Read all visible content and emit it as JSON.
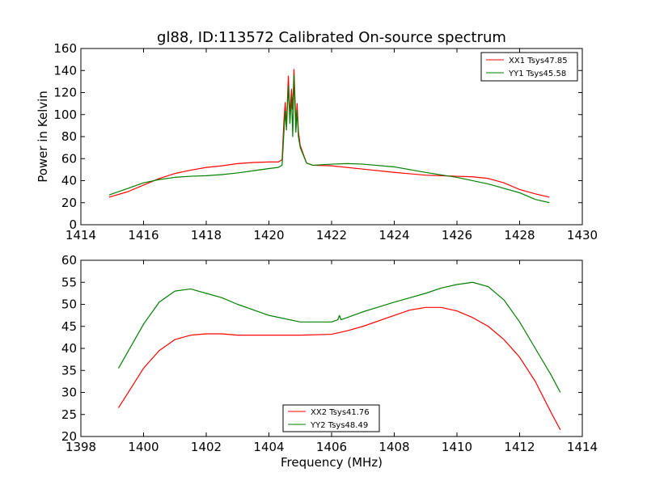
{
  "chart_data": [
    {
      "type": "line",
      "title": "gl88, ID:113572 Calibrated On-source spectrum",
      "xlabel": "",
      "ylabel": "Power in Kelvin",
      "xlim": [
        1414,
        1430
      ],
      "ylim": [
        0,
        160
      ],
      "xticks": [
        1414,
        1416,
        1418,
        1420,
        1422,
        1424,
        1426,
        1428,
        1430
      ],
      "yticks": [
        0,
        20,
        40,
        60,
        80,
        100,
        120,
        140,
        160
      ],
      "grid": false,
      "legend_position": "top-right",
      "series": [
        {
          "name": "XX1 Tsys47.85",
          "color": "#ff0000",
          "points": [
            [
              1414.9,
              25
            ],
            [
              1415.5,
              30
            ],
            [
              1416,
              36
            ],
            [
              1416.5,
              42
            ],
            [
              1417,
              46.5
            ],
            [
              1417.5,
              49.5
            ],
            [
              1418,
              52
            ],
            [
              1418.5,
              53.5
            ],
            [
              1419,
              55.5
            ],
            [
              1419.5,
              56.5
            ],
            [
              1420,
              57
            ],
            [
              1420.3,
              57
            ],
            [
              1420.42,
              59
            ],
            [
              1420.48,
              95
            ],
            [
              1420.52,
              111
            ],
            [
              1420.56,
              90
            ],
            [
              1420.62,
              135
            ],
            [
              1420.67,
              100
            ],
            [
              1420.72,
              123
            ],
            [
              1420.76,
              105
            ],
            [
              1420.8,
              141
            ],
            [
              1420.86,
              92
            ],
            [
              1420.9,
              110
            ],
            [
              1420.94,
              85
            ],
            [
              1421,
              72
            ],
            [
              1421.2,
              56
            ],
            [
              1421.4,
              54
            ],
            [
              1422,
              53.5
            ],
            [
              1423,
              50.5
            ],
            [
              1424,
              47.5
            ],
            [
              1425,
              45
            ],
            [
              1425.5,
              44.5
            ],
            [
              1426,
              44
            ],
            [
              1426.5,
              43.5
            ],
            [
              1427,
              42
            ],
            [
              1427.5,
              38
            ],
            [
              1428,
              32
            ],
            [
              1428.5,
              28
            ],
            [
              1428.95,
              25
            ]
          ]
        },
        {
          "name": "YY1 Tsys45.58",
          "color": "#008000",
          "points": [
            [
              1414.9,
              27
            ],
            [
              1415.5,
              33
            ],
            [
              1416,
              38
            ],
            [
              1416.5,
              41
            ],
            [
              1417,
              43
            ],
            [
              1417.5,
              44
            ],
            [
              1418,
              44.5
            ],
            [
              1418.5,
              45.5
            ],
            [
              1419,
              47
            ],
            [
              1419.5,
              49
            ],
            [
              1420,
              51
            ],
            [
              1420.3,
              52
            ],
            [
              1420.42,
              54
            ],
            [
              1420.48,
              84
            ],
            [
              1420.52,
              103
            ],
            [
              1420.56,
              86
            ],
            [
              1420.62,
              126
            ],
            [
              1420.67,
              92
            ],
            [
              1420.72,
              117
            ],
            [
              1420.76,
              80
            ],
            [
              1420.8,
              136
            ],
            [
              1420.86,
              84
            ],
            [
              1420.9,
              104
            ],
            [
              1420.94,
              80
            ],
            [
              1421,
              70
            ],
            [
              1421.2,
              56
            ],
            [
              1421.4,
              54
            ],
            [
              1422,
              55
            ],
            [
              1422.5,
              55.5
            ],
            [
              1423,
              55
            ],
            [
              1424,
              52.5
            ],
            [
              1425,
              47.5
            ],
            [
              1426,
              43
            ],
            [
              1427,
              37
            ],
            [
              1428,
              29
            ],
            [
              1428.5,
              23
            ],
            [
              1428.95,
              20
            ]
          ]
        }
      ]
    },
    {
      "type": "line",
      "title": "",
      "xlabel": "Frequency (MHz)",
      "ylabel": "",
      "xlim": [
        1398,
        1414
      ],
      "ylim": [
        20,
        60
      ],
      "xticks": [
        1398,
        1400,
        1402,
        1404,
        1406,
        1408,
        1410,
        1412,
        1414
      ],
      "yticks": [
        20,
        25,
        30,
        35,
        40,
        45,
        50,
        55,
        60
      ],
      "grid": false,
      "legend_position": "bottom-center",
      "series": [
        {
          "name": "XX2 Tsys41.76",
          "color": "#ff0000",
          "points": [
            [
              1399.2,
              26.5
            ],
            [
              1399.6,
              31
            ],
            [
              1400,
              35.5
            ],
            [
              1400.5,
              39.5
            ],
            [
              1401,
              42
            ],
            [
              1401.5,
              43
            ],
            [
              1402,
              43.3
            ],
            [
              1402.5,
              43.3
            ],
            [
              1403,
              43
            ],
            [
              1404,
              43
            ],
            [
              1405,
              43
            ],
            [
              1406,
              43.2
            ],
            [
              1406.5,
              44
            ],
            [
              1407,
              45
            ],
            [
              1408,
              47.5
            ],
            [
              1408.5,
              48.7
            ],
            [
              1409,
              49.3
            ],
            [
              1409.5,
              49.3
            ],
            [
              1410,
              48.5
            ],
            [
              1410.5,
              47
            ],
            [
              1411,
              45
            ],
            [
              1411.5,
              42
            ],
            [
              1412,
              38
            ],
            [
              1412.5,
              32.5
            ],
            [
              1413,
              25.5
            ],
            [
              1413.3,
              21.5
            ]
          ]
        },
        {
          "name": "YY2 Tsys48.49",
          "color": "#008000",
          "points": [
            [
              1399.2,
              35.5
            ],
            [
              1399.6,
              40.5
            ],
            [
              1400,
              45.5
            ],
            [
              1400.5,
              50.5
            ],
            [
              1401,
              53
            ],
            [
              1401.5,
              53.5
            ],
            [
              1402,
              52.5
            ],
            [
              1402.5,
              51.5
            ],
            [
              1403,
              50
            ],
            [
              1404,
              47.5
            ],
            [
              1405,
              46
            ],
            [
              1406,
              46
            ],
            [
              1406.2,
              46.5
            ],
            [
              1406.25,
              47.5
            ],
            [
              1406.3,
              46.5
            ],
            [
              1406.5,
              47
            ],
            [
              1407,
              48.3
            ],
            [
              1408,
              50.5
            ],
            [
              1409,
              52.5
            ],
            [
              1409.5,
              53.7
            ],
            [
              1410,
              54.5
            ],
            [
              1410.5,
              55
            ],
            [
              1411,
              54
            ],
            [
              1411.5,
              51
            ],
            [
              1412,
              46
            ],
            [
              1412.5,
              40
            ],
            [
              1413,
              34
            ],
            [
              1413.3,
              30
            ]
          ]
        }
      ]
    }
  ]
}
